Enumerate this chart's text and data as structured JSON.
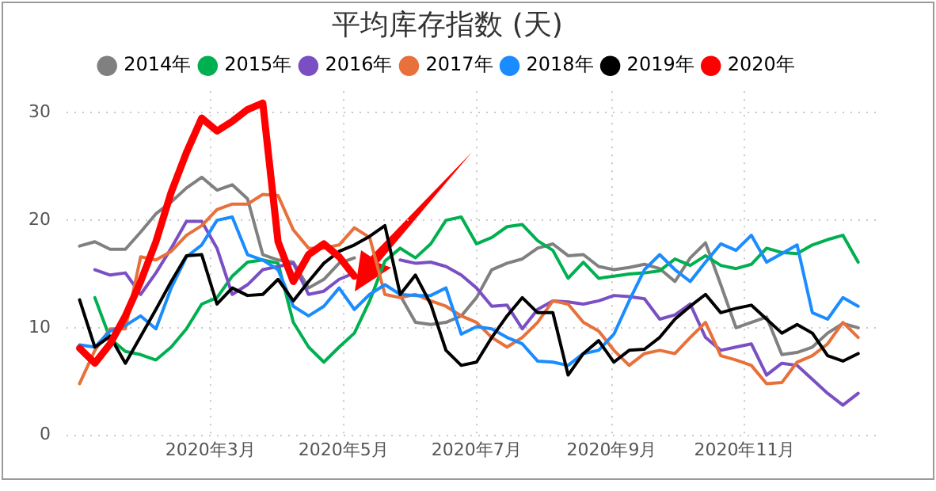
{
  "chart_data": {
    "type": "line",
    "title": "平均库存指数 (天)",
    "legend": "top",
    "grid": true,
    "marker": "none",
    "line_style": "solid",
    "x": [
      "2020-01-01",
      "2020-01-08",
      "2020-01-15",
      "2020-01-22",
      "2020-01-29",
      "2020-02-05",
      "2020-02-12",
      "2020-02-19",
      "2020-02-26",
      "2020-03-04",
      "2020-03-11",
      "2020-03-18",
      "2020-03-25",
      "2020-04-01",
      "2020-04-08",
      "2020-04-15",
      "2020-04-22",
      "2020-04-29",
      "2020-05-06",
      "2020-05-13",
      "2020-05-20",
      "2020-05-27",
      "2020-06-03",
      "2020-06-10",
      "2020-06-17",
      "2020-06-24",
      "2020-07-01",
      "2020-07-08",
      "2020-07-15",
      "2020-07-22",
      "2020-07-29",
      "2020-08-05",
      "2020-08-12",
      "2020-08-19",
      "2020-08-26",
      "2020-09-02",
      "2020-09-09",
      "2020-09-16",
      "2020-09-23",
      "2020-09-30",
      "2020-10-07",
      "2020-10-14",
      "2020-10-21",
      "2020-10-28",
      "2020-11-04",
      "2020-11-11",
      "2020-11-18",
      "2020-11-25",
      "2020-12-02",
      "2020-12-09",
      "2020-12-16",
      "2020-12-23"
    ],
    "xlim": [
      "2019-12-26",
      "2021-01-03"
    ],
    "xticks": [
      {
        "value": "2020-03-01",
        "label": "2020年3月"
      },
      {
        "value": "2020-05-01",
        "label": "2020年5月"
      },
      {
        "value": "2020-07-01",
        "label": "2020年7月"
      },
      {
        "value": "2020-09-01",
        "label": "2020年9月"
      },
      {
        "value": "2020-11-01",
        "label": "2020年11月"
      }
    ],
    "ylim": [
      0,
      32
    ],
    "yticks": [
      0,
      10,
      20,
      30
    ],
    "series": [
      {
        "name": "2014年",
        "color": "#808080",
        "values": [
          17.6,
          18,
          17.3,
          17.3,
          18.9,
          20.6,
          21.7,
          23,
          24,
          22.8,
          23.3,
          22,
          16.8,
          16.3,
          16.1,
          13.7,
          14.5,
          16,
          16.5,
          null,
          null,
          13,
          10.5,
          10.3,
          10.5,
          11.1,
          12.8,
          15.4,
          16,
          16.4,
          17.4,
          17.8,
          16.7,
          16.8,
          15.7,
          15.4,
          15.6,
          15.9,
          15.5,
          14.3,
          16.5,
          17.9,
          14,
          10,
          10.5,
          11,
          7.5,
          7.7,
          8.2,
          9.5,
          10.4,
          10
        ]
      },
      {
        "name": "2015年",
        "color": "#00b050",
        "values": [
          null,
          12.8,
          9,
          7.8,
          7.5,
          7,
          8.2,
          9.9,
          12.2,
          12.8,
          14.8,
          16.1,
          16.3,
          16,
          10.5,
          8.2,
          6.8,
          8.2,
          9.5,
          12.5,
          16.2,
          17.4,
          16.5,
          17.8,
          20,
          20.3,
          17.8,
          18.4,
          19.4,
          19.6,
          18.1,
          17.2,
          14.6,
          16.1,
          14.6,
          14.8,
          15,
          15.1,
          15.3,
          16.4,
          15.8,
          16.7,
          15.8,
          15.5,
          15.9,
          17.4,
          17,
          16.9,
          17.7,
          18.2,
          18.6,
          16.1
        ]
      },
      {
        "name": "2016年",
        "color": "#7b4fc4",
        "values": [
          null,
          15.4,
          14.9,
          15.1,
          13.1,
          15.1,
          17.4,
          19.9,
          19.9,
          17.4,
          13.1,
          14,
          15.4,
          15.7,
          16,
          13.1,
          13.4,
          14.5,
          15.1,
          null,
          null,
          16.3,
          16,
          16.1,
          15.7,
          14.9,
          13.7,
          12,
          12.1,
          9.9,
          11.7,
          12.5,
          12.4,
          12.2,
          12.5,
          13,
          12.9,
          12.7,
          10.8,
          11.2,
          12.2,
          9.1,
          7.9,
          8.2,
          8.5,
          5.6,
          6.7,
          6.5,
          5.2,
          3.9,
          2.8,
          3.9
        ]
      },
      {
        "name": "2017年",
        "color": "#e8703a",
        "values": [
          4.8,
          7.9,
          9.9,
          9.9,
          16.6,
          16.3,
          17.1,
          18.6,
          19.5,
          21,
          21.5,
          21.5,
          22.4,
          22.3,
          19.1,
          17.4,
          17.4,
          17.7,
          19.3,
          18.4,
          13.1,
          12.8,
          13.1,
          12.5,
          12,
          11.1,
          10.5,
          9.1,
          8.2,
          9.1,
          10.5,
          12.5,
          12.2,
          10.5,
          9.7,
          7.9,
          6.5,
          7.6,
          7.9,
          7.6,
          9.1,
          10.5,
          7.4,
          7,
          6.5,
          4.8,
          4.9,
          6.8,
          7.4,
          8.5,
          10.5,
          9.1
        ]
      },
      {
        "name": "2018年",
        "color": "#1a8cff",
        "values": [
          8.4,
          8.2,
          9.7,
          10.2,
          11.1,
          9.9,
          13.7,
          16.6,
          17.7,
          20,
          20.3,
          16.8,
          16.3,
          15.4,
          12,
          11.1,
          12,
          13.7,
          11.7,
          13.1,
          14,
          13.1,
          13,
          13,
          13.7,
          9.4,
          10.1,
          9.9,
          9.1,
          8.5,
          6.9,
          6.8,
          6.5,
          7.6,
          7.9,
          9.4,
          12.5,
          15.4,
          16.8,
          15.4,
          14.3,
          16.1,
          17.8,
          17.2,
          18.6,
          16.1,
          16.9,
          17.7,
          11.4,
          10.8,
          12.8,
          12
        ]
      },
      {
        "name": "2019年",
        "color": "#000000",
        "values": [
          12.6,
          8.2,
          9.2,
          6.7,
          9.2,
          11.7,
          14.3,
          16.7,
          16.8,
          12.2,
          13.7,
          13,
          13.1,
          14.5,
          12.5,
          14.3,
          16,
          17.1,
          17.7,
          18.5,
          19.5,
          13.1,
          14.9,
          12.2,
          7.9,
          6.5,
          6.8,
          9.1,
          11.1,
          12.8,
          11.4,
          11.4,
          5.6,
          7.6,
          8.8,
          6.8,
          7.9,
          8,
          9.1,
          10.8,
          12,
          13.1,
          11.4,
          11.8,
          12.1,
          10.8,
          9.5,
          10.3,
          9.5,
          7.4,
          6.9,
          7.6
        ]
      },
      {
        "name": "2020年",
        "color": "#ff0000",
        "x": [
          "2020-01-01",
          "2020-01-08",
          "2020-01-15",
          "2020-01-22",
          "2020-01-29",
          "2020-02-05",
          "2020-02-12",
          "2020-02-19",
          "2020-02-26",
          "2020-03-04",
          "2020-03-11",
          "2020-03-18",
          "2020-03-25",
          "2020-04-01",
          "2020-04-08",
          "2020-04-15",
          "2020-04-22",
          "2020-04-29",
          "2020-05-06"
        ],
        "values": [
          8.1,
          6.7,
          8.5,
          11.1,
          14.3,
          18,
          22.6,
          26.3,
          29.5,
          28.3,
          29.2,
          30.3,
          30.9,
          18,
          14.3,
          16.8,
          17.8,
          16.6,
          14.8
        ]
      }
    ]
  }
}
